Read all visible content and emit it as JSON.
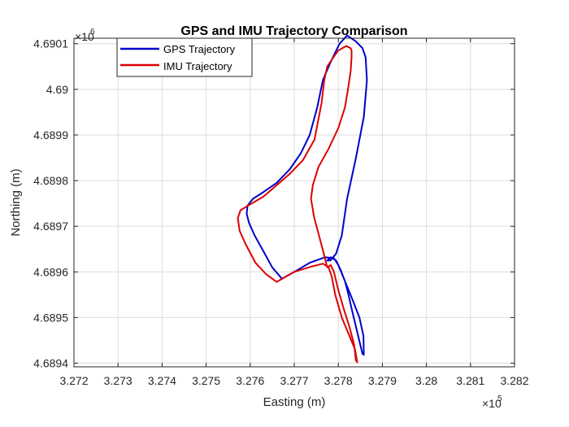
{
  "chart_data": {
    "type": "line",
    "title": "GPS and IMU Trajectory Comparison",
    "xlabel": "Easting (m)",
    "ylabel": "Northing (m)",
    "x_exponent_label": "×10",
    "x_exponent": "5",
    "y_exponent_label": "×10",
    "y_exponent": "6",
    "xlim": [
      327200,
      328200
    ],
    "ylim": [
      4689392,
      4690112
    ],
    "xticks": [
      327200,
      327300,
      327400,
      327500,
      327600,
      327700,
      327800,
      327900,
      328000,
      328100,
      328200
    ],
    "xtick_labels": [
      "3.272",
      "3.273",
      "3.274",
      "3.275",
      "3.276",
      "3.277",
      "3.278",
      "3.279",
      "3.28",
      "3.281",
      "3.282"
    ],
    "yticks": [
      4689400,
      4689500,
      4689600,
      4689700,
      4689800,
      4689900,
      4690000,
      4690100
    ],
    "ytick_labels": [
      "4.6894",
      "4.6895",
      "4.6896",
      "4.6897",
      "4.6898",
      "4.6899",
      "4.69",
      "4.6901"
    ],
    "grid": true,
    "legend_position": "top-left",
    "series": [
      {
        "name": "GPS Trajectory",
        "color": "#0000cc",
        "x": [
          327855,
          327850,
          327840,
          327830,
          327823,
          327815,
          327805,
          327795,
          327783,
          327775,
          327782,
          327795,
          327808,
          327820,
          327840,
          327858,
          327865,
          327862,
          327855,
          327840,
          327820,
          327803,
          327790,
          327778,
          327765,
          327752,
          327735,
          327715,
          327690,
          327660,
          327630,
          327606,
          327594,
          327592,
          327597,
          327610,
          327630,
          327650,
          327672,
          327700,
          327735,
          327770,
          327790,
          327800,
          327815,
          327832,
          327848,
          327857,
          327858
        ],
        "y": [
          4689420,
          4689440,
          4689480,
          4689520,
          4689550,
          4689580,
          4689605,
          4689625,
          4689632,
          4689625,
          4689625,
          4689640,
          4689680,
          4689760,
          4689850,
          4689940,
          4690020,
          4690070,
          4690090,
          4690105,
          4690118,
          4690100,
          4690075,
          4690050,
          4690020,
          4689960,
          4689900,
          4689860,
          4689825,
          4689795,
          4689775,
          4689760,
          4689745,
          4689728,
          4689708,
          4689680,
          4689645,
          4689610,
          4689585,
          4689600,
          4689620,
          4689632,
          4689630,
          4689615,
          4689580,
          4689540,
          4689500,
          4689460,
          4689418
        ]
      },
      {
        "name": "IMU Trajectory",
        "color": "#dd0000",
        "x": [
          327840,
          327836,
          327825,
          327812,
          327800,
          327790,
          327783,
          327775,
          327763,
          327745,
          327738,
          327742,
          327755,
          327778,
          327800,
          327815,
          327822,
          327828,
          327830,
          327830,
          327828,
          327818,
          327800,
          327785,
          327775,
          327768,
          327762,
          327746,
          327720,
          327690,
          327660,
          327630,
          327600,
          327578,
          327572,
          327576,
          327590,
          327612,
          327636,
          327660,
          327700,
          327740,
          327765,
          327778,
          327785,
          327793,
          327808,
          327825,
          327838,
          327843
        ],
        "y": [
          4689405,
          4689440,
          4689480,
          4689520,
          4689560,
          4689600,
          4689615,
          4689610,
          4689655,
          4689720,
          4689760,
          4689790,
          4689830,
          4689870,
          4689915,
          4689960,
          4690000,
          4690040,
          4690070,
          4690085,
          4690090,
          4690095,
          4690085,
          4690065,
          4690050,
          4690020,
          4689970,
          4689890,
          4689845,
          4689815,
          4689790,
          4689765,
          4689748,
          4689735,
          4689718,
          4689690,
          4689660,
          4689620,
          4689595,
          4689578,
          4689600,
          4689612,
          4689618,
          4689610,
          4689590,
          4689550,
          4689500,
          4689460,
          4689430,
          4689402
        ]
      }
    ]
  }
}
